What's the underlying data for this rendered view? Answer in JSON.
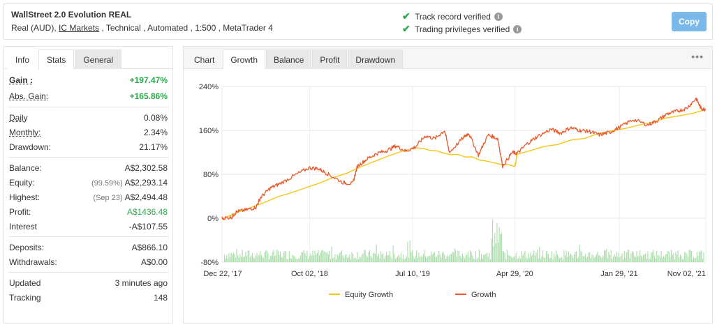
{
  "header": {
    "title": "WallStreet 2.0 Evolution REAL",
    "sub_prefix": "Real (AUD), ",
    "broker_link": "IC Markets",
    "sub_suffix": " , Technical , Automated , 1:500 , MetaTrader 4",
    "track_record": "Track record verified",
    "trading_privileges": "Trading privileges verified",
    "info_glyph": "i",
    "copy_label": "Copy"
  },
  "left_tabs": [
    "Info",
    "Stats",
    "General"
  ],
  "stats": {
    "gain_label": "Gain :",
    "gain_value": "+197.47%",
    "abs_gain_label": "Abs. Gain:",
    "abs_gain_value": "+165.86%",
    "daily_label": "Daily",
    "daily_value": "0.08%",
    "monthly_label": "Monthly:",
    "monthly_value": "2.34%",
    "drawdown_label": "Drawdown:",
    "drawdown_value": "21.17%",
    "balance_label": "Balance:",
    "balance_value": "A$2,302.58",
    "equity_label": "Equity:",
    "equity_pre": "(99.59%)",
    "equity_value": "A$2,293.14",
    "highest_label": "Highest:",
    "highest_pre": "(Sep 23)",
    "highest_value": "A$2,494.48",
    "profit_label": "Profit:",
    "profit_value": "A$1436.48",
    "interest_label": "Interest",
    "interest_value": "-A$107.55",
    "deposits_label": "Deposits:",
    "deposits_value": "A$866.10",
    "withdrawals_label": "Withdrawals:",
    "withdrawals_value": "A$0.00",
    "updated_label": "Updated",
    "updated_value": "3 minutes ago",
    "tracking_label": "Tracking",
    "tracking_value": "148"
  },
  "chart_tabs": [
    "Chart",
    "Growth",
    "Balance",
    "Profit",
    "Drawdown"
  ],
  "menu_glyph": "•••",
  "colors": {
    "growth": "#e8592b",
    "equity": "#f5c518",
    "volume": "#a8dca8",
    "green": "#2aaa4a",
    "copy": "#79b8e8"
  },
  "chart_data": {
    "type": "line",
    "y_ticks": [
      "240%",
      "160%",
      "80%",
      "0%",
      "-80%"
    ],
    "y_tick_values": [
      240,
      160,
      80,
      0,
      -80
    ],
    "ylim": [
      -80,
      240
    ],
    "x_ticks": [
      "Dec 22, '17",
      "Oct 02, '18",
      "Jul 10, '19",
      "Apr 29, '20",
      "Jan 29, '21",
      "Nov 02, '21"
    ],
    "x_tick_values": [
      0,
      0.181,
      0.394,
      0.605,
      0.821,
      1.0
    ],
    "series": [
      {
        "name": "Growth",
        "x": [
          0,
          0.02,
          0.03,
          0.05,
          0.07,
          0.08,
          0.1,
          0.12,
          0.15,
          0.18,
          0.2,
          0.22,
          0.25,
          0.27,
          0.28,
          0.3,
          0.32,
          0.34,
          0.36,
          0.38,
          0.4,
          0.42,
          0.44,
          0.46,
          0.47,
          0.5,
          0.51,
          0.53,
          0.55,
          0.57,
          0.58,
          0.6,
          0.61,
          0.63,
          0.65,
          0.68,
          0.7,
          0.72,
          0.74,
          0.76,
          0.78,
          0.8,
          0.82,
          0.85,
          0.88,
          0.9,
          0.92,
          0.94,
          0.96,
          0.98,
          0.99,
          1.0
        ],
        "y": [
          0,
          2,
          12,
          15,
          20,
          38,
          55,
          63,
          78,
          92,
          90,
          80,
          65,
          63,
          95,
          108,
          118,
          123,
          132,
          122,
          130,
          150,
          145,
          160,
          120,
          148,
          155,
          115,
          152,
          145,
          95,
          120,
          118,
          135,
          148,
          162,
          155,
          165,
          160,
          158,
          152,
          156,
          165,
          180,
          170,
          178,
          190,
          195,
          200,
          218,
          200,
          198
        ]
      },
      {
        "name": "Equity Growth",
        "x": [
          0,
          0.4,
          0.605,
          0.607,
          0.61,
          1.0
        ],
        "y": [
          0,
          130,
          95,
          100,
          118,
          198
        ]
      }
    ],
    "volume_note": "daily activity bars near bottom baseline",
    "legend": [
      "Equity Growth",
      "Growth"
    ],
    "legend_position": "bottom"
  }
}
